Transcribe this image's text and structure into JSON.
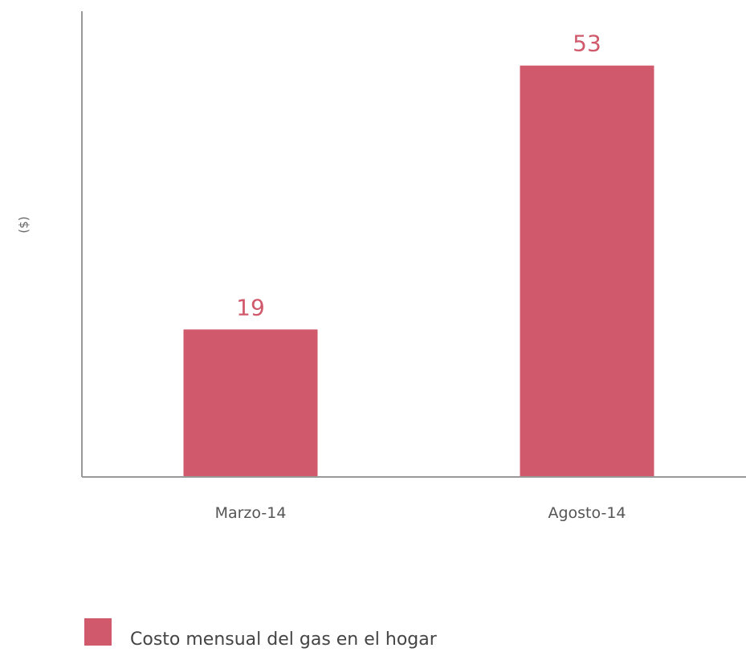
{
  "chart_data": {
    "type": "bar",
    "title": "",
    "xlabel": "",
    "ylabel": "($)",
    "categories": [
      "Marzo-14",
      "Agosto-14"
    ],
    "series": [
      {
        "name": "Costo mensual del gas en el hogar",
        "values": [
          19,
          53
        ],
        "color": "#d0596b"
      }
    ],
    "ylim": [
      0,
      60
    ],
    "grid": false,
    "data_labels": true,
    "legend_position": "bottom-left",
    "axis_color": "#999999"
  }
}
